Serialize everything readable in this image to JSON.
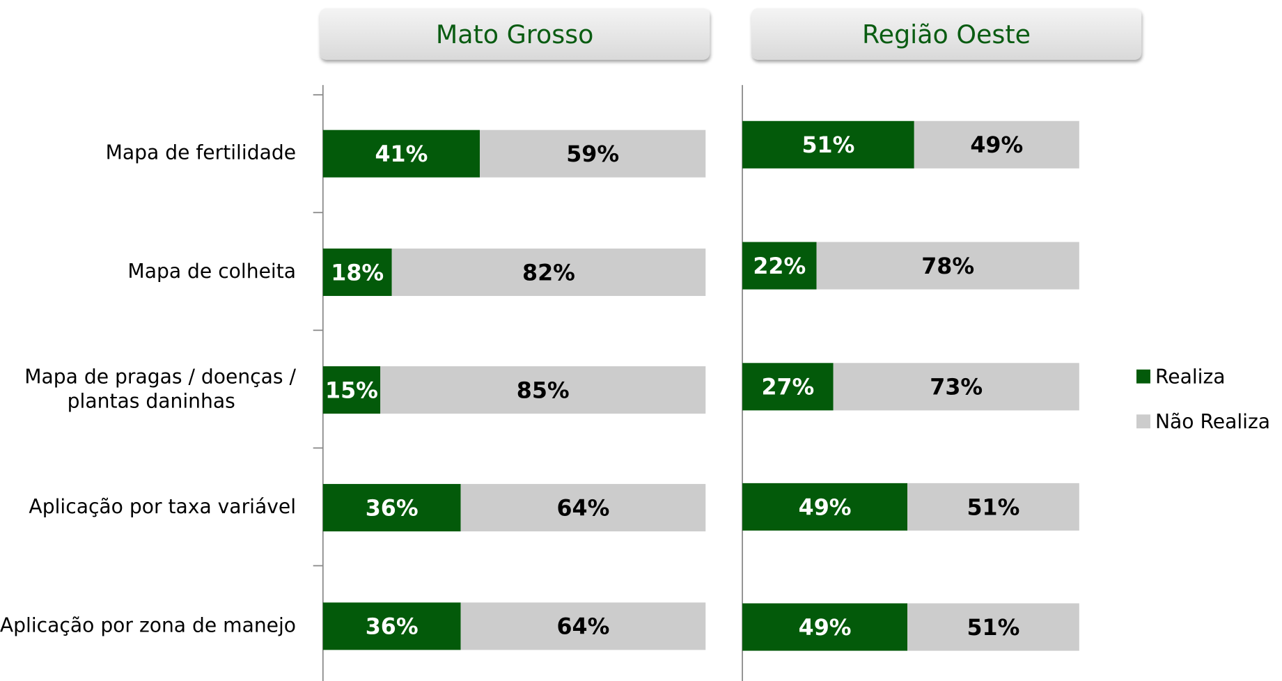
{
  "chart_data": [
    {
      "type": "bar",
      "stacked": true,
      "orientation": "horizontal",
      "title": "Mato Grosso",
      "categories": [
        "Mapa de fertilidade",
        "Mapa de colheita",
        "Mapa de pragas / doenças / plantas daninhas",
        "Aplicação por taxa variável",
        "Aplicação por zona de manejo"
      ],
      "xlim": [
        0,
        100
      ],
      "series": [
        {
          "name": "Realiza",
          "color": "#035a0a",
          "values": [
            41,
            18,
            15,
            36,
            36
          ],
          "value_labels": [
            "41%",
            "18%",
            "15%",
            "36%",
            "36%"
          ]
        },
        {
          "name": "Não Realiza",
          "color": "#cccccc",
          "values": [
            59,
            82,
            85,
            64,
            64
          ],
          "value_labels": [
            "59%",
            "82%",
            "85%",
            "64%",
            "64%"
          ]
        }
      ]
    },
    {
      "type": "bar",
      "stacked": true,
      "orientation": "horizontal",
      "title": "Região Oeste",
      "xlim": [
        0,
        100
      ],
      "series": [
        {
          "color": "#035a0a",
          "values": [
            51,
            22,
            27,
            49,
            49
          ],
          "value_labels": [
            "51%",
            "22%",
            "27%",
            "49%",
            "49%"
          ]
        },
        {
          "color": "#cccccc",
          "values": [
            49,
            78,
            73,
            51,
            51
          ],
          "value_labels": [
            "49%",
            "78%",
            "73%",
            "51%",
            "51%"
          ]
        }
      ]
    }
  ]
}
